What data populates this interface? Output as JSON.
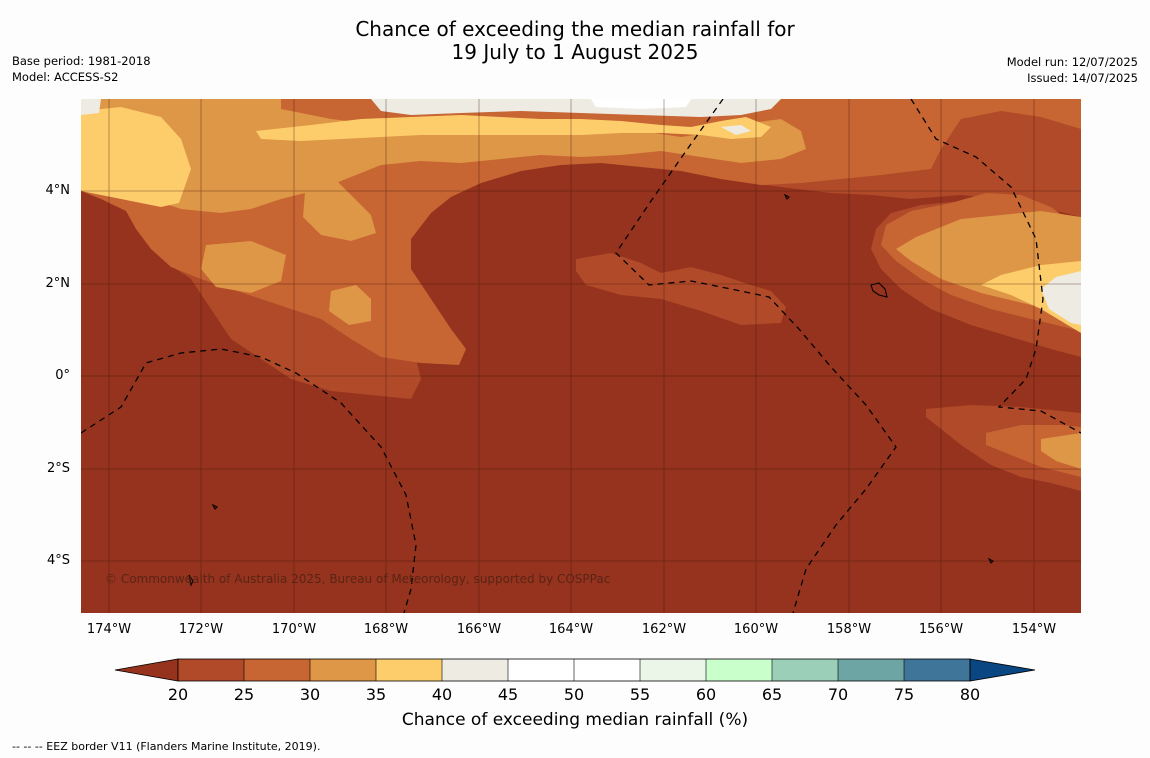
{
  "title_line1": "Chance of exceeding the median rainfall for",
  "title_line2": "19 July to 1 August 2025",
  "meta_left": {
    "base_period": "Base period: 1981-2018",
    "model": "Model: ACCESS-S2"
  },
  "meta_right": {
    "model_run": "Model run: 12/07/2025",
    "issued": "Issued: 14/07/2025"
  },
  "map": {
    "lon_range": [
      "174.5°W",
      "153°W"
    ],
    "lat_range": [
      "5°S",
      "6°N"
    ],
    "y_ticks": [
      "4°N",
      "2°N",
      "0°",
      "2°S",
      "4°S"
    ],
    "x_ticks": [
      "174°W",
      "172°W",
      "170°W",
      "168°W",
      "166°W",
      "164°W",
      "162°W",
      "160°W",
      "158°W",
      "156°W",
      "154°W"
    ],
    "copyright": "© Commonwealth of Australia 2025, Bureau of Meteorology, supported by COSPPac",
    "colors": {
      "lt20": "#96331e",
      "c20_25": "#b14a29",
      "c25_30": "#c76533",
      "c30_35": "#de9647",
      "c35_40": "#fdcd6b",
      "c40_45": "#eeebe3",
      "c45_55": "#ffffff",
      "c55_60": "#ebf6e9",
      "c60_65": "#c9ffcb",
      "c65_70": "#9bcfb7",
      "c70_75": "#6da5a4",
      "c75_80": "#3e7598",
      "gt80": "#0a4681"
    }
  },
  "colorbar": {
    "ticks": [
      "20",
      "25",
      "30",
      "35",
      "40",
      "45",
      "50",
      "55",
      "60",
      "65",
      "70",
      "75",
      "80"
    ],
    "label": "Chance of exceeding median rainfall (%)"
  },
  "eez_note": "--  --  -- EEZ border V11 (Flanders Marine Institute, 2019)."
}
